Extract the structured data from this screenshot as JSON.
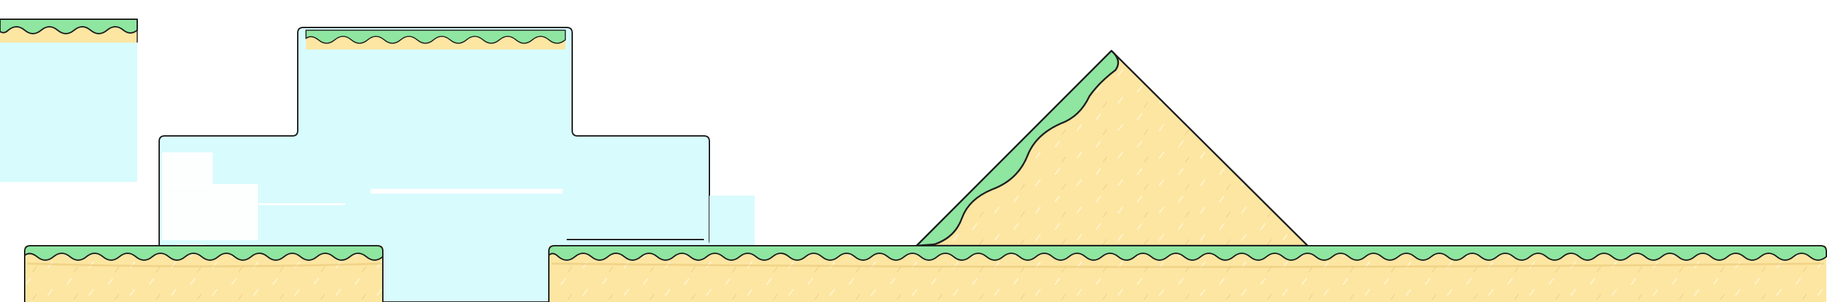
{
  "scene": {
    "kind": "2d-platformer-level-tiles",
    "palette": {
      "background": "#ffffff",
      "sky_wall": "#d8fbfd",
      "sand": "#fde6a2",
      "sand_stroke": "#e9c878",
      "grass": "#8ee6a0",
      "outline": "#1f1f1f"
    },
    "elements": [
      "floating-platform-top-left",
      "floating-platform-top-middle",
      "stepped-sky-wall",
      "ground-platform-left",
      "ground-platform-right",
      "sand-hill-slope"
    ]
  }
}
